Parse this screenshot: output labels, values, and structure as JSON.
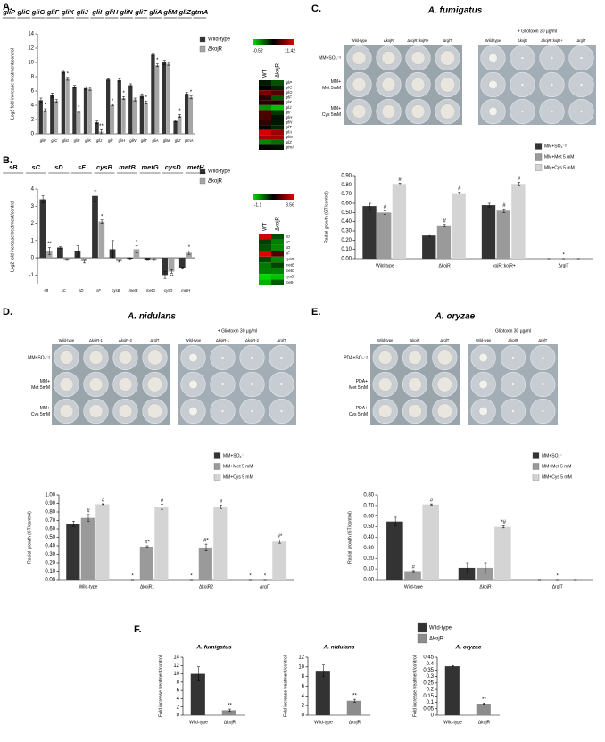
{
  "chart_data": [
    {
      "type": "bar",
      "panel": "A.",
      "y_label": "Log2 fold increase treatment/control",
      "categories": [
        "gliP",
        "gliC",
        "gliG",
        "gliF",
        "gliK",
        "gliJ",
        "gliI",
        "gliH",
        "gliN",
        "gliT",
        "gliA",
        "gliM",
        "gliZ",
        "gtmA"
      ],
      "series": [
        {
          "name": "Wild-type",
          "color": "#333333",
          "values": [
            4.7,
            5.4,
            8.7,
            6.6,
            6.4,
            1.6,
            7.6,
            7.5,
            6.8,
            5.3,
            11.1,
            10.0,
            1.8,
            5.6
          ],
          "errors": [
            0.3,
            0.3,
            0.2,
            0.2,
            0.2,
            0.2,
            0.1,
            0.2,
            0.2,
            0.3,
            0.2,
            0.3,
            0.1,
            0.2
          ]
        },
        {
          "name": "ΔkojR",
          "color": "#a6a6a6",
          "values": [
            3.3,
            4.6,
            7.7,
            3.1,
            6.3,
            0.3,
            4.0,
            5.0,
            4.8,
            4.4,
            9.6,
            9.8,
            2.5,
            5.1
          ],
          "errors": [
            0.2,
            0.2,
            0.2,
            0.1,
            0.2,
            0.3,
            0.1,
            0.2,
            0.2,
            0.2,
            0.2,
            0.2,
            0.2,
            0.2
          ],
          "stars": [
            "*",
            null,
            "*",
            "*",
            null,
            "**",
            "*",
            "*",
            null,
            "*",
            "*",
            null,
            "*",
            "*"
          ]
        }
      ],
      "ylim": [
        0,
        14
      ],
      "yticks": [
        0,
        2,
        4,
        6,
        8,
        10,
        12,
        14
      ],
      "heatmap": {
        "columns": [
          "WT",
          "ΔkojR"
        ],
        "range": [
          -0.52,
          11.42
        ]
      }
    },
    {
      "type": "bar",
      "panel": "B.",
      "y_label": "Log2 fold increase treatment/control",
      "categories": [
        "sB",
        "sC",
        "sD",
        "sF",
        "cysB",
        "metB",
        "metG",
        "cysD",
        "metH"
      ],
      "series": [
        {
          "name": "Wild-type",
          "color": "#333333",
          "values": [
            3.4,
            0.6,
            0.4,
            3.6,
            0.5,
            -0.05,
            -0.1,
            -1.0,
            -0.6
          ],
          "errors": [
            0.2,
            0.05,
            0.3,
            0.3,
            0.5,
            0.05,
            0.05,
            0.2,
            0.05
          ]
        },
        {
          "name": "ΔkojR",
          "color": "#a6a6a6",
          "values": [
            0.4,
            -0.1,
            -0.2,
            2.1,
            -0.2,
            0.5,
            -0.1,
            -0.8,
            0.3
          ],
          "errors": [
            0.2,
            0.05,
            0.1,
            0.1,
            0.05,
            0.2,
            0.05,
            0.1,
            0.1
          ],
          "stars": [
            "**",
            null,
            null,
            "*",
            null,
            "*",
            null,
            "**",
            "*"
          ]
        }
      ],
      "ylim": [
        -1.5,
        4
      ],
      "yticks": [
        -1,
        0,
        1,
        2,
        3,
        4
      ],
      "heatmap": {
        "columns": [
          "WT",
          "ΔkojR"
        ],
        "range": [
          -1.1,
          3.56
        ]
      }
    },
    {
      "type": "bar",
      "panel": "C.",
      "title": "A. fumigatus",
      "y_label": "Radial growth (GT/control)",
      "plates": {
        "columns": [
          "Wild-type",
          "ΔkojR",
          "ΔkojR::kojR+",
          "ΔrglT"
        ],
        "rows": [
          [
            "MM+SO₄⁻²"
          ],
          [
            "MM+",
            "Met 5mM"
          ],
          [
            "MM+",
            "Cys 5mM"
          ]
        ],
        "treatment": "+ Gliotoxin 30 µg/ml"
      },
      "categories": [
        "Wild-type",
        "ΔkojR",
        "kojR::kojR+",
        "ΔrglT"
      ],
      "series": [
        {
          "name": "MM+SO₄⁻²",
          "color": "#333333",
          "values": [
            0.57,
            0.25,
            0.58,
            0
          ],
          "errors": [
            0.03,
            0.01,
            0.02,
            0
          ]
        },
        {
          "name": "MM+Met 5 mM",
          "color": "#9a9a9a",
          "values": [
            0.5,
            0.36,
            0.52,
            0
          ],
          "errors": [
            0.02,
            0.01,
            0.02,
            0
          ],
          "stars": [
            "#",
            "#",
            "#",
            "*"
          ]
        },
        {
          "name": "MM+Cys 5 mM",
          "color": "#d4d4d4",
          "values": [
            0.81,
            0.71,
            0.81,
            0
          ],
          "errors": [
            0.01,
            0.01,
            0.02,
            0
          ],
          "stars": [
            "#",
            "#",
            "#",
            null
          ]
        }
      ],
      "ylim": [
        0,
        0.9
      ],
      "yticks": [
        {
          "value": 0,
          "label": "0.00"
        },
        {
          "value": 0.1,
          "label": "0.10"
        },
        {
          "value": 0.2,
          "label": "0.20"
        },
        {
          "value": 0.3,
          "label": "0.30"
        },
        {
          "value": 0.4,
          "label": "0.40"
        },
        {
          "value": 0.5,
          "label": "0.50"
        },
        {
          "value": 0.6,
          "label": "0.60"
        },
        {
          "value": 0.7,
          "label": "0.70"
        },
        {
          "value": 0.8,
          "label": "0.80"
        },
        {
          "value": 0.9,
          "label": "0.90"
        }
      ]
    },
    {
      "type": "bar",
      "panel": "D.",
      "title": "A. nidulans",
      "y_label": "Radial growth (GT/control)",
      "plates": {
        "columns": [
          "Wild-type",
          "ΔkojR-1",
          "ΔkojR-2",
          "ΔrglT"
        ],
        "rows": [
          [
            "MM+SO₄⁻²"
          ],
          [
            "MM+",
            "Met 5mM"
          ],
          [
            "MM+",
            "Cys 5mM"
          ]
        ],
        "treatment": "+ Gliotoxin 30 µg/ml"
      },
      "categories": [
        "Wild-type",
        "ΔkojR1",
        "ΔkojR2",
        "ΔrglT"
      ],
      "series": [
        {
          "name": "MM+SO₄⁻",
          "color": "#333333",
          "values": [
            0.66,
            0,
            0,
            0
          ],
          "errors": [
            0.03,
            0,
            0,
            0
          ],
          "stars": [
            null,
            "*",
            "*",
            "*"
          ]
        },
        {
          "name": "MM+Met 5 mM",
          "color": "#9a9a9a",
          "values": [
            0.73,
            0.39,
            0.38,
            0
          ],
          "errors": [
            0.04,
            0.01,
            0.04,
            0
          ],
          "stars": [
            "#",
            "#*",
            "#*",
            "*"
          ]
        },
        {
          "name": "MM+Cys 5 mM",
          "color": "#d4d4d4",
          "values": [
            0.89,
            0.86,
            0.86,
            0.45
          ],
          "errors": [
            0.005,
            0.03,
            0.02,
            0.02
          ],
          "stars": [
            "#",
            "#",
            "#",
            "#*"
          ]
        }
      ],
      "ylim": [
        0,
        1
      ],
      "yticks": [
        {
          "value": 0,
          "label": "0.00"
        },
        {
          "value": 0.1,
          "label": "0.10"
        },
        {
          "value": 0.2,
          "label": "0.20"
        },
        {
          "value": 0.3,
          "label": "0.30"
        },
        {
          "value": 0.4,
          "label": "0.40"
        },
        {
          "value": 0.5,
          "label": "0.50"
        },
        {
          "value": 0.6,
          "label": "0.60"
        },
        {
          "value": 0.7,
          "label": "0.70"
        },
        {
          "value": 0.8,
          "label": "0.80"
        },
        {
          "value": 0.9,
          "label": "0.90"
        },
        {
          "value": 1,
          "label": "1.00"
        }
      ]
    },
    {
      "type": "bar",
      "panel": "E.",
      "title": "A. oryzae",
      "y_label": "Radial growth (GT/control)",
      "plates": {
        "columns": [
          "Wild-type",
          "ΔkojR",
          "ΔrglT"
        ],
        "rows": [
          [
            "PDA+SO₄⁻²"
          ],
          [
            "PDA+",
            "Met 5mM"
          ],
          [
            "PDA+",
            "Cys 5mM"
          ]
        ],
        "treatment": "Gliotoxin 30 µg/ml"
      },
      "categories": [
        "Wild-type",
        "ΔkojR",
        "ΔrglT"
      ],
      "series": [
        {
          "name": "MM+SO₄⁻",
          "color": "#333333",
          "values": [
            0.55,
            0.11,
            0
          ],
          "errors": [
            0.04,
            0.05,
            0
          ]
        },
        {
          "name": "MM+Met 5 mM",
          "color": "#9a9a9a",
          "values": [
            0.08,
            0.11,
            0
          ],
          "errors": [
            0.005,
            0.05,
            0
          ],
          "stars": [
            "#",
            null,
            "*"
          ]
        },
        {
          "name": "MM+Cys 5 mM",
          "color": "#d4d4d4",
          "values": [
            0.71,
            0.5,
            0
          ],
          "errors": [
            0.005,
            0.01,
            0
          ],
          "stars": [
            "#",
            "*#",
            null
          ]
        }
      ],
      "ylim": [
        0,
        0.8
      ],
      "yticks": [
        {
          "value": 0,
          "label": "0.00"
        },
        {
          "value": 0.1,
          "label": "0.10"
        },
        {
          "value": 0.2,
          "label": "0.20"
        },
        {
          "value": 0.3,
          "label": "0.30"
        },
        {
          "value": 0.4,
          "label": "0.40"
        },
        {
          "value": 0.5,
          "label": "0.50"
        },
        {
          "value": 0.6,
          "label": "0.60"
        },
        {
          "value": 0.7,
          "label": "0.70"
        },
        {
          "value": 0.8,
          "label": "0.80"
        }
      ]
    },
    {
      "type": "bar",
      "panel": "F.",
      "title": "A. fumigatus",
      "y_label": "Fold increase treatment/control",
      "legend": [
        {
          "name": "Wild-type",
          "color": "#333333"
        },
        {
          "name": "ΔkojR",
          "color": "#8c8c8c"
        }
      ],
      "categories": [
        "Wild-type",
        "ΔkojR"
      ],
      "values": [
        10,
        1.2
      ],
      "errors": [
        1.7,
        0.3
      ],
      "stars": [
        null,
        "**"
      ],
      "colors": [
        "#333333",
        "#8c8c8c"
      ],
      "ylim": [
        0,
        14
      ],
      "yticks": [
        0,
        2,
        4,
        6,
        8,
        10,
        12,
        14
      ]
    },
    {
      "type": "bar",
      "title": "A. nidulans",
      "y_label": "Fold increase treatment/control",
      "categories": [
        "Wild-type",
        "ΔkojR"
      ],
      "values": [
        9.2,
        3.0
      ],
      "errors": [
        1.2,
        0.3
      ],
      "stars": [
        null,
        "**"
      ],
      "colors": [
        "#333333",
        "#8c8c8c"
      ],
      "ylim": [
        0,
        12
      ],
      "yticks": [
        0,
        2,
        4,
        6,
        8,
        10,
        12
      ]
    },
    {
      "type": "bar",
      "title": "A. oryzae",
      "y_label": "Fold increase treatment/control",
      "categories": [
        "Wild-type",
        "ΔkojR"
      ],
      "values": [
        0.38,
        0.09
      ],
      "errors": [
        0.005,
        0.005
      ],
      "stars": [
        null,
        "**"
      ],
      "colors": [
        "#333333",
        "#8c8c8c"
      ],
      "ylim": [
        0,
        0.45
      ],
      "yticks": [
        0,
        0.05,
        0.1,
        0.15,
        0.2,
        0.25,
        0.3,
        0.35,
        0.4,
        0.45
      ]
    }
  ]
}
